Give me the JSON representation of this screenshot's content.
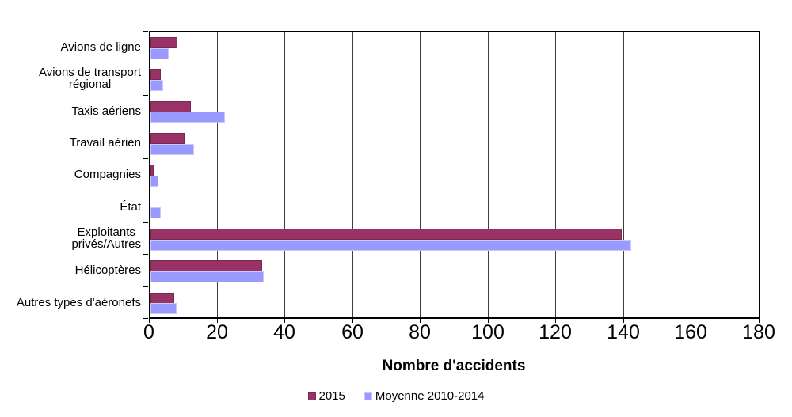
{
  "chart_data": {
    "type": "bar",
    "orientation": "horizontal",
    "title": "",
    "xlabel": "Nombre d'accidents",
    "ylabel": "",
    "xlim": [
      0,
      180
    ],
    "xticks": [
      0,
      20,
      40,
      60,
      80,
      100,
      120,
      140,
      160,
      180
    ],
    "grid": "vertical",
    "legend_position": "bottom",
    "categories": [
      "Avions de ligne",
      "Avions de transport\nrégional",
      "Taxis aériens",
      "Travail aérien",
      "Compagnies",
      "État",
      "Exploitants\nprivés/Autres",
      "Hélicoptères",
      "Autres types d'aéronefs"
    ],
    "series": [
      {
        "name": "2015",
        "color": "#993366",
        "border_color": "#7c2750",
        "values": [
          8,
          3,
          12,
          10,
          1,
          0,
          139,
          33,
          7
        ]
      },
      {
        "name": "Moyenne 2010-2014",
        "color": "#9999ff",
        "border_color": "#c9c9f9",
        "values": [
          5.4,
          3.8,
          22,
          12.8,
          2.4,
          3,
          142,
          33.4,
          7.6
        ]
      }
    ]
  },
  "colors": {
    "axis": "#000000",
    "gridline": "#3f3f3f",
    "background": "#ffffff"
  }
}
